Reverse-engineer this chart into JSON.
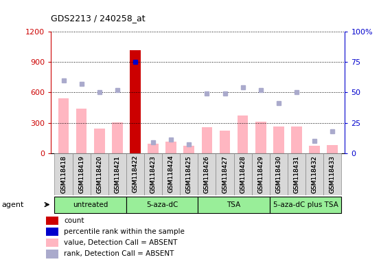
{
  "title": "GDS2213 / 240258_at",
  "samples": [
    "GSM118418",
    "GSM118419",
    "GSM118420",
    "GSM118421",
    "GSM118422",
    "GSM118423",
    "GSM118424",
    "GSM118425",
    "GSM118426",
    "GSM118427",
    "GSM118428",
    "GSM118429",
    "GSM118430",
    "GSM118431",
    "GSM118432",
    "GSM118433"
  ],
  "values": [
    540,
    440,
    240,
    305,
    1020,
    90,
    115,
    75,
    255,
    220,
    370,
    310,
    260,
    260,
    75,
    80
  ],
  "ranks_pct": [
    60,
    57,
    50,
    52,
    75,
    9,
    11,
    7,
    49,
    49,
    54,
    52,
    41,
    50,
    10,
    18
  ],
  "is_count_bar": [
    false,
    false,
    false,
    false,
    true,
    false,
    false,
    false,
    false,
    false,
    false,
    false,
    false,
    false,
    false,
    false
  ],
  "bar_color_normal": "#ffb6c1",
  "bar_color_count": "#cc0000",
  "rank_color_count": "#0000cc",
  "rank_color_normal": "#aaaacc",
  "ylim_left": [
    0,
    1200
  ],
  "ylim_right": [
    0,
    100
  ],
  "yticks_left": [
    0,
    300,
    600,
    900,
    1200
  ],
  "yticks_right": [
    0,
    25,
    50,
    75,
    100
  ],
  "groups": [
    {
      "label": "untreated",
      "start": 0,
      "end": 4
    },
    {
      "label": "5-aza-dC",
      "start": 4,
      "end": 8
    },
    {
      "label": "TSA",
      "start": 8,
      "end": 12
    },
    {
      "label": "5-aza-dC plus TSA",
      "start": 12,
      "end": 16
    }
  ],
  "legend_items": [
    {
      "label": "count",
      "color": "#cc0000"
    },
    {
      "label": "percentile rank within the sample",
      "color": "#0000cc"
    },
    {
      "label": "value, Detection Call = ABSENT",
      "color": "#ffb6c1"
    },
    {
      "label": "rank, Detection Call = ABSENT",
      "color": "#aaaacc"
    }
  ],
  "agent_label": "agent",
  "axis_left_color": "#cc0000",
  "axis_right_color": "#0000cc",
  "group_color": "#99ee99",
  "group_border_color": "#000000"
}
